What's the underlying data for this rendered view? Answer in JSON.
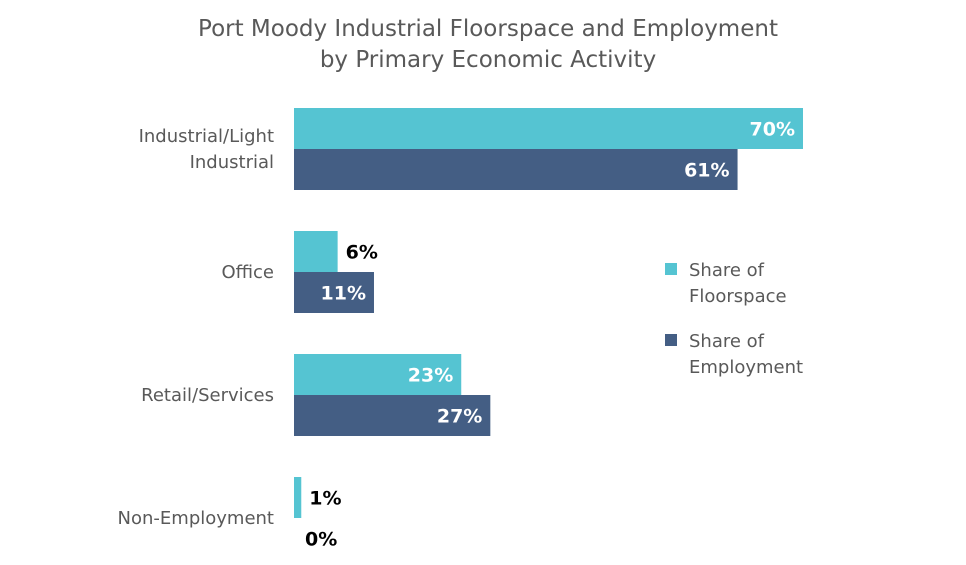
{
  "chart_data": {
    "type": "bar",
    "orientation": "horizontal",
    "title": "Port Moody Industrial Floorspace and Employment by Primary Economic Activity",
    "title_lines": [
      "Port Moody Industrial Floorspace and Employment",
      "by Primary Economic Activity"
    ],
    "categories": [
      "Industrial/Light Industrial",
      "Office",
      "Retail/Services",
      "Non-Employment"
    ],
    "category_lines": [
      [
        "Industrial/Light",
        "Industrial"
      ],
      [
        "Office"
      ],
      [
        "Retail/Services"
      ],
      [
        "Non-Employment"
      ]
    ],
    "series": [
      {
        "name": "Share of Floorspace",
        "name_lines": [
          "Share of",
          "Floorspace"
        ],
        "color": "#55C4D2",
        "values": [
          70,
          6,
          23,
          1
        ],
        "labels": [
          "70%",
          "6%",
          "23%",
          "1%"
        ]
      },
      {
        "name": "Share of Employment",
        "name_lines": [
          "Share of",
          "Employment"
        ],
        "color": "#445E84",
        "values": [
          61,
          11,
          27,
          0
        ],
        "labels": [
          "61%",
          "11%",
          "27%",
          "0%"
        ]
      }
    ],
    "xlabel": "",
    "ylabel": "",
    "xlim": [
      0,
      70
    ],
    "unit": "%",
    "grid": false,
    "legend_position": "right"
  }
}
